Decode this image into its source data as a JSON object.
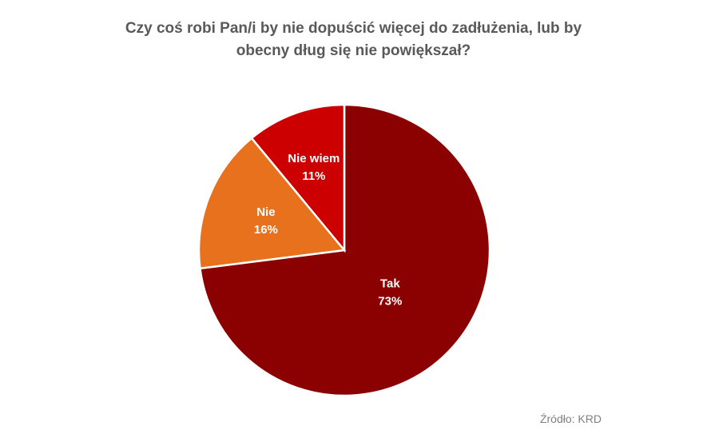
{
  "chart_data": {
    "type": "pie",
    "title_lines": [
      "Czy coś robi Pan/i by nie dopuścić więcej do zadłużenia, lub by",
      "obecny dług się nie powiększał?"
    ],
    "slices": [
      {
        "name": "Tak",
        "value": 73,
        "label": "73%",
        "color": "#8b0000"
      },
      {
        "name": "Nie",
        "value": 16,
        "label": "16%",
        "color": "#e8711d"
      },
      {
        "name": "Nie wiem",
        "value": 11,
        "label": "11%",
        "color": "#cc0000"
      }
    ],
    "start_angle_deg": 0,
    "direction": "clockwise",
    "legend": "none"
  },
  "source": "Źródło: KRD"
}
